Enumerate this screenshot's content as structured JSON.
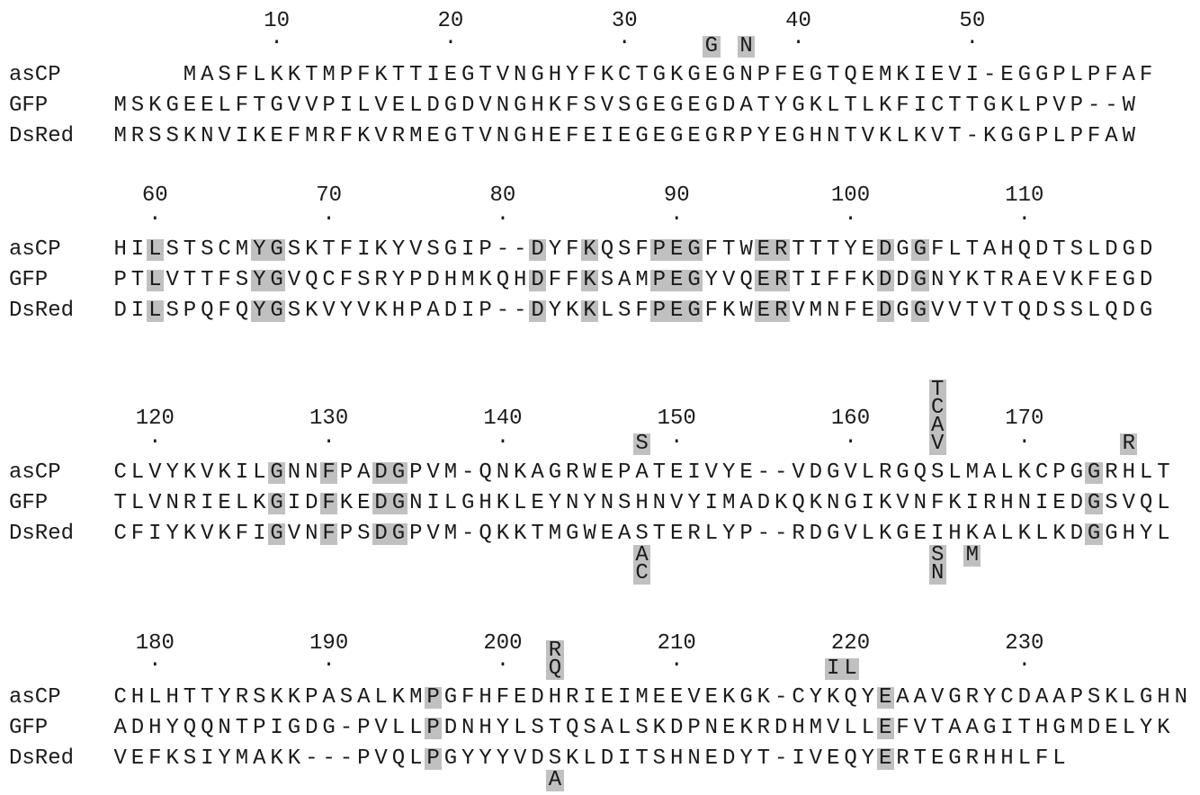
{
  "alignment": {
    "blocks": [
      {
        "start_column": 0,
        "ruler": [
          "10",
          "20",
          "30",
          "40",
          "50"
        ],
        "rows": [
          {
            "name": "asCP",
            "sequence": "    MASFLKKTMPFKTTIEGTVNGHYFKCTGKGEGNPFEGTQEMKIEVI-EGGPLPFAF"
          },
          {
            "name": "GFP",
            "sequence": "MSKGEELFTGVVPILVELDGDVNGHKFSVSGEGEGDATYGKLTLKFICTTGKLPVP--W"
          },
          {
            "name": "DsRed",
            "sequence": "MRSSKNVIKEFMRFKVRMEGTVNGHEFEIEGEGEGRPYEGHNTVKLKVT-KGGPLPFAW"
          }
        ],
        "annotations_above": [
          {
            "column": 34,
            "text": "G"
          },
          {
            "column": 36,
            "text": "N"
          }
        ],
        "annotations_below": []
      },
      {
        "ruler": [
          "60",
          "70",
          "80",
          "90",
          "100",
          "110"
        ],
        "rows": [
          {
            "name": "asCP",
            "sequence": "HILSTSCMYGSKTFIKYVSGIP--DYFKQSFPEGFTWERTTTYEDGGFLTAHQDTSLDGD"
          },
          {
            "name": "GFP",
            "sequence": "PTLVTTFSYGVQCFSRYPDHMKQHDFFKSAMPEGYVQERTIFFKDDGNYKTRAEVKFEGD"
          },
          {
            "name": "DsRed",
            "sequence": "DILSPQFQYGSKVYVKHPADIP--DYKKLSFPEGFKWERVMNFEDGGVVTVTQDSSLQDG"
          }
        ],
        "annotations_above": [],
        "annotations_below": []
      },
      {
        "ruler": [
          "120",
          "130",
          "140",
          "150",
          "160",
          "170"
        ],
        "rows": [
          {
            "name": "asCP",
            "sequence": "CLVYKVKILGNNFPADGPVM-QNKAGRWEPATEIVYE--VDGVLRGQSLMALKCPGGRHLT"
          },
          {
            "name": "GFP",
            "sequence": "TLVNRIELKGIDFKEDGNILGHKLEYNYNSHNVYIMADKQKNGIKVNFKIRHNIEDGSVQL"
          },
          {
            "name": "DsRed",
            "sequence": "CFIYKVKFIGVNFPSDGPVM-QKKTMGWEASTERLYP--RDGVLKGEIHKALKLKDGGHYL"
          }
        ],
        "annotations_above": [
          {
            "column": 30,
            "text": "S"
          },
          {
            "column": 47,
            "text": "T"
          },
          {
            "column": 47,
            "text": "C"
          },
          {
            "column": 47,
            "text": "A"
          },
          {
            "column": 47,
            "text": "V"
          },
          {
            "column": 58,
            "text": "R"
          }
        ],
        "annotations_below": [
          {
            "column": 30,
            "text": "A"
          },
          {
            "column": 30,
            "text": "C"
          },
          {
            "column": 47,
            "text": "S"
          },
          {
            "column": 47,
            "text": "N"
          },
          {
            "column": 49,
            "text": "M"
          }
        ]
      },
      {
        "ruler": [
          "180",
          "190",
          "200",
          "210",
          "220",
          "230"
        ],
        "rows": [
          {
            "name": "asCP",
            "sequence": "CHLHTTYRSKKPASALKMPGFHFEDHRIEIMEEVEKGK-CYKQYEAAVGRYCDAAPSKLGHN"
          },
          {
            "name": "GFP",
            "sequence": "ADHYQQNTPIGDG-PVLLPDNHYLSTQSALSKDPNEKRDHMVLLEFVTAAGITHGMDELYK"
          },
          {
            "name": "DsRed",
            "sequence": "VEFKSIYMAKK---PVQLPGYYYVDSKLDITSHNEDYT-IVEQYERTEGRHHLFL"
          }
        ],
        "annotations_above": [
          {
            "column": 25,
            "text": "R"
          },
          {
            "column": 25,
            "text": "Q"
          },
          {
            "column": 41,
            "text": "I"
          },
          {
            "column": 42,
            "text": "L"
          }
        ],
        "annotations_below": [
          {
            "column": 25,
            "text": "A"
          }
        ]
      }
    ]
  }
}
